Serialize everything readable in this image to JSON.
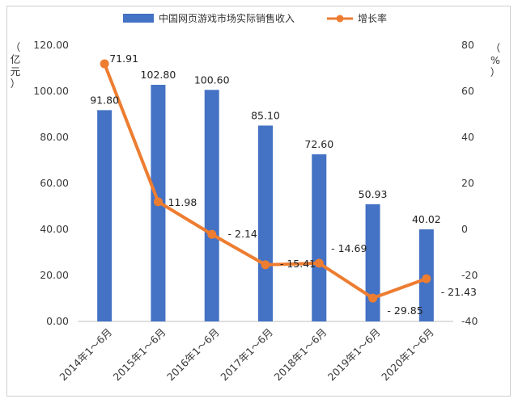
{
  "chart_data": {
    "type": "bar+line",
    "categories": [
      "2014年1～6月",
      "2015年1～6月",
      "2016年1～6月",
      "2017年1～6月",
      "2018年1～6月",
      "2019年1～6月",
      "2020年1～6月"
    ],
    "series": [
      {
        "name": "中国网页游戏市场实际销售收入",
        "type": "bar",
        "axis": "left",
        "values": [
          91.8,
          102.8,
          100.6,
          85.1,
          72.6,
          50.93,
          40.02
        ],
        "labels": [
          "91.80",
          "102.80",
          "100.60",
          "85.10",
          "72.60",
          "50.93",
          "40.02"
        ],
        "color": "#4472C4"
      },
      {
        "name": "增长率",
        "type": "line",
        "axis": "right",
        "values": [
          71.91,
          11.98,
          -2.14,
          -15.41,
          -14.69,
          -29.85,
          -21.43
        ],
        "labels": [
          "71.91",
          "11.98",
          "- 2.14",
          "- 15.41",
          "- 14.69",
          "- 29.85",
          "- 21.43"
        ],
        "color": "#ED7D31"
      }
    ],
    "left_axis": {
      "unit_chars": [
        "（",
        "亿",
        "元",
        "）"
      ],
      "ylim": [
        0,
        120
      ],
      "ticks": [
        "0.00",
        "20.00",
        "40.00",
        "60.00",
        "80.00",
        "100.00",
        "120.00"
      ]
    },
    "right_axis": {
      "unit_chars": [
        "（",
        "%",
        "）"
      ],
      "ylim": [
        -40,
        80
      ],
      "ticks": [
        "-40",
        "-20",
        "0",
        "20",
        "40",
        "60",
        "80"
      ]
    },
    "legend": {
      "position": "top"
    },
    "grid": false
  }
}
